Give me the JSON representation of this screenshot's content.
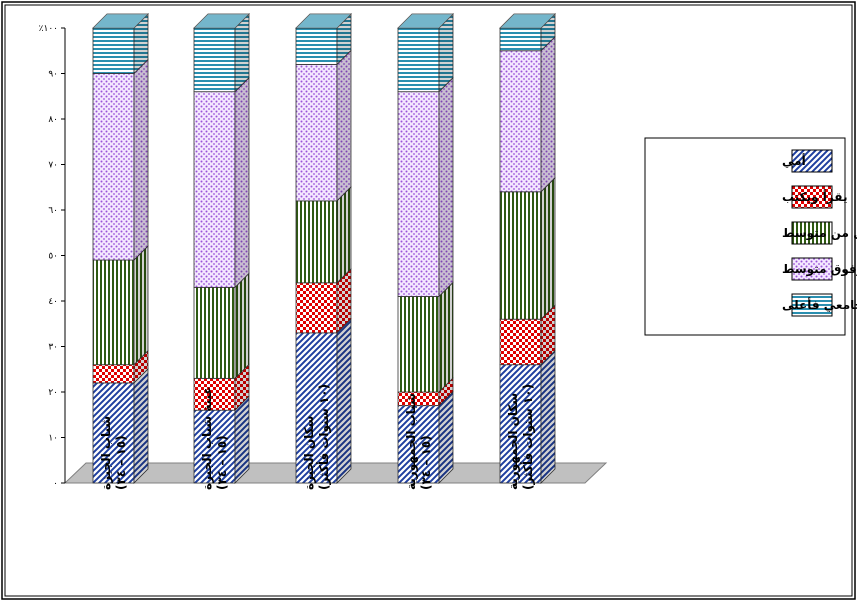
{
  "chart_data": {
    "type": "bar",
    "stacked": true,
    "three_d": true,
    "ylim": [
      0,
      100
    ],
    "y_tick_labels": [
      "٠",
      "١٠",
      "٢٠",
      "٣٠",
      "٤٠",
      "٥٠",
      "٦٠",
      "٧٠",
      "٨٠",
      "٩٠",
      "٪١٠٠"
    ],
    "categories": [
      [
        "شباب الجيزة",
        "(١٥ – ٣٤)"
      ],
      [
        "عينة شباب الجيزة",
        "(١٥ – ٣٤)"
      ],
      [
        "سكان الجيزة",
        "(١٠ سنوات فأكثر)"
      ],
      [
        "شباب الجمهورية",
        "(١٥ – ٣٤)"
      ],
      [
        "سكان الجمهورية",
        "(١٠ سنوات فأكثر)"
      ]
    ],
    "series": [
      {
        "name": "أمي",
        "values": [
          22,
          16,
          33,
          17,
          26
        ],
        "pattern": "diag",
        "color": "#1f3f9f"
      },
      {
        "name": "يقرأ ويكتب",
        "values": [
          4,
          7,
          11,
          3,
          10
        ],
        "pattern": "checker",
        "color": "#e00000"
      },
      {
        "name": "أقل من متوسط",
        "values": [
          23,
          20,
          18,
          21,
          28
        ],
        "pattern": "vstripe",
        "color": "#2f5a12"
      },
      {
        "name": "متوسط وفوق متوسط",
        "values": [
          41,
          43,
          30,
          45,
          31
        ],
        "pattern": "dots",
        "color": "#9a52d8"
      },
      {
        "name": "جامعي فأعلى",
        "values": [
          10,
          14,
          8,
          14,
          5
        ],
        "pattern": "hstripe",
        "color": "#2a8fb0"
      }
    ],
    "legend_position": "right"
  }
}
